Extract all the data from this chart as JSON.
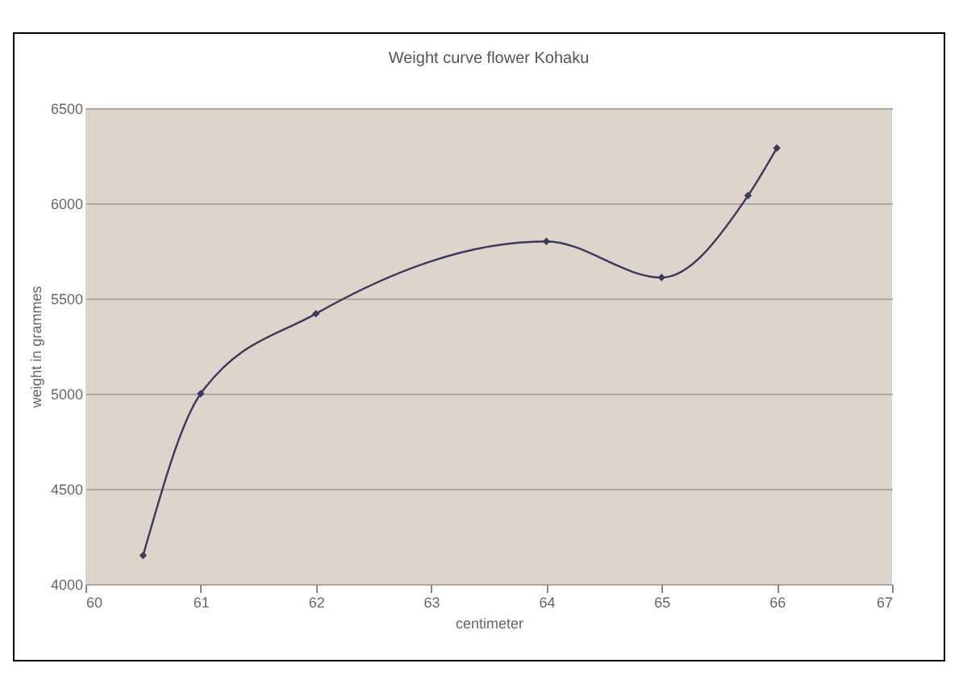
{
  "chart_data": {
    "type": "line",
    "title": "Weight curve flower Kohaku",
    "xlabel": "centimeter",
    "ylabel": "weight in grammes",
    "x": [
      60.5,
      61,
      62,
      64,
      65,
      65.75,
      66
    ],
    "series": [
      {
        "color": "#3b3a5e",
        "values": [
          4150,
          5000,
          5420,
          5800,
          5610,
          6040,
          6290
        ]
      }
    ],
    "xlim": [
      60,
      67
    ],
    "xticks": [
      60,
      61,
      62,
      63,
      64,
      65,
      66,
      67
    ],
    "ylim": [
      4000,
      6500
    ],
    "yticks": [
      4000,
      4500,
      5000,
      5500,
      6000,
      6500
    ],
    "grid": "y",
    "marker": "diamond",
    "line_style": "solid"
  }
}
